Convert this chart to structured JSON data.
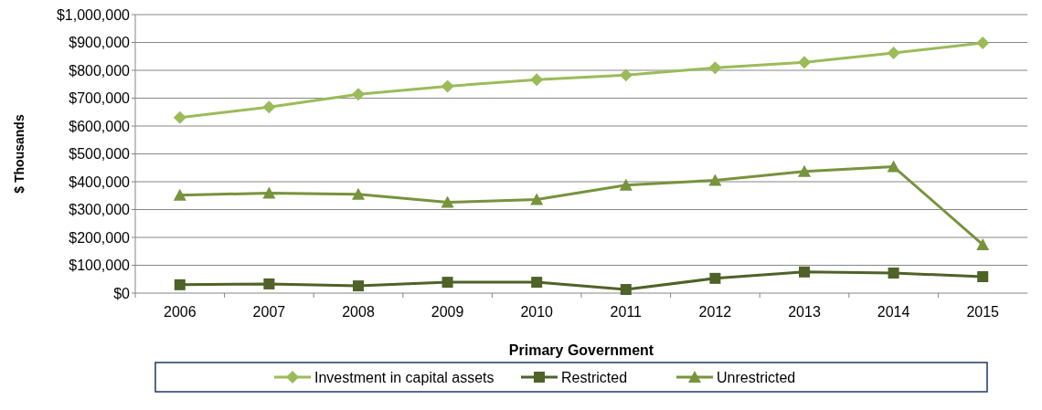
{
  "chart_data": {
    "type": "line",
    "xlabel": "Primary Government",
    "ylabel": "$ Thousands",
    "categories": [
      "2006",
      "2007",
      "2008",
      "2009",
      "2010",
      "2011",
      "2012",
      "2013",
      "2014",
      "2015"
    ],
    "ylim": [
      0,
      1000000
    ],
    "yticks": [
      {
        "value": 0,
        "label": "$0"
      },
      {
        "value": 100000,
        "label": "$100,000"
      },
      {
        "value": 200000,
        "label": "$200,000"
      },
      {
        "value": 300000,
        "label": "$300,000"
      },
      {
        "value": 400000,
        "label": "$400,000"
      },
      {
        "value": 500000,
        "label": "$500,000"
      },
      {
        "value": 600000,
        "label": "$600,000"
      },
      {
        "value": 700000,
        "label": "$700,000"
      },
      {
        "value": 800000,
        "label": "$800,000"
      },
      {
        "value": 900000,
        "label": "$900,000"
      },
      {
        "value": 1000000,
        "label": "$1,000,000"
      }
    ],
    "grid": "y",
    "legend": "bottom",
    "series": [
      {
        "name": "Investment in capital assets",
        "color": "#9bbb59",
        "marker": "diamond",
        "values": [
          630000,
          668000,
          714000,
          743000,
          766000,
          783000,
          809000,
          829000,
          862000,
          898000
        ]
      },
      {
        "name": "Restricted",
        "color": "#4f6228",
        "marker": "square",
        "values": [
          30000,
          33000,
          26000,
          39000,
          39000,
          13000,
          53000,
          76000,
          72000,
          59000
        ]
      },
      {
        "name": "Unrestricted",
        "color": "#77933c",
        "marker": "triangle",
        "values": [
          352000,
          359000,
          355000,
          326000,
          336000,
          388000,
          405000,
          437000,
          454000,
          174000
        ]
      }
    ]
  }
}
